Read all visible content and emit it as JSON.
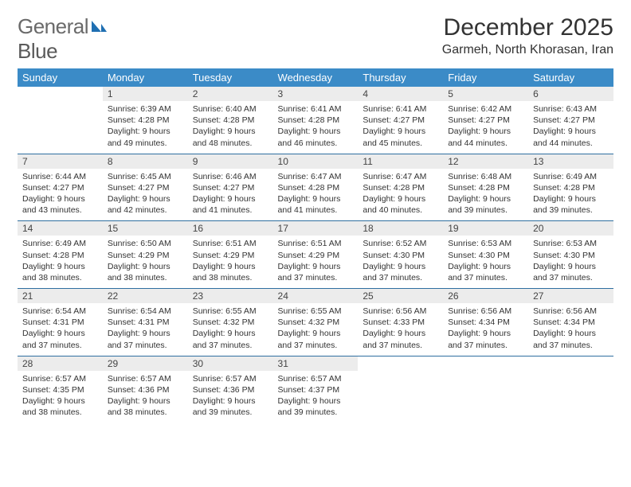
{
  "brand": {
    "word1": "General",
    "word2": "Blue"
  },
  "title": "December 2025",
  "location": "Garmeh, North Khorasan, Iran",
  "colors": {
    "header_bg": "#3b8bc7",
    "header_text": "#ffffff",
    "daynum_bg": "#ececec",
    "rule": "#2f6fa0",
    "text": "#333333",
    "brand_gray": "#6a6a6a",
    "brand_blue": "#1f6fb2"
  },
  "columns": [
    "Sunday",
    "Monday",
    "Tuesday",
    "Wednesday",
    "Thursday",
    "Friday",
    "Saturday"
  ],
  "weeks": [
    [
      null,
      {
        "n": "1",
        "sr": "6:39 AM",
        "ss": "4:28 PM",
        "dl": "9 hours and 49 minutes."
      },
      {
        "n": "2",
        "sr": "6:40 AM",
        "ss": "4:28 PM",
        "dl": "9 hours and 48 minutes."
      },
      {
        "n": "3",
        "sr": "6:41 AM",
        "ss": "4:28 PM",
        "dl": "9 hours and 46 minutes."
      },
      {
        "n": "4",
        "sr": "6:41 AM",
        "ss": "4:27 PM",
        "dl": "9 hours and 45 minutes."
      },
      {
        "n": "5",
        "sr": "6:42 AM",
        "ss": "4:27 PM",
        "dl": "9 hours and 44 minutes."
      },
      {
        "n": "6",
        "sr": "6:43 AM",
        "ss": "4:27 PM",
        "dl": "9 hours and 44 minutes."
      }
    ],
    [
      {
        "n": "7",
        "sr": "6:44 AM",
        "ss": "4:27 PM",
        "dl": "9 hours and 43 minutes."
      },
      {
        "n": "8",
        "sr": "6:45 AM",
        "ss": "4:27 PM",
        "dl": "9 hours and 42 minutes."
      },
      {
        "n": "9",
        "sr": "6:46 AM",
        "ss": "4:27 PM",
        "dl": "9 hours and 41 minutes."
      },
      {
        "n": "10",
        "sr": "6:47 AM",
        "ss": "4:28 PM",
        "dl": "9 hours and 41 minutes."
      },
      {
        "n": "11",
        "sr": "6:47 AM",
        "ss": "4:28 PM",
        "dl": "9 hours and 40 minutes."
      },
      {
        "n": "12",
        "sr": "6:48 AM",
        "ss": "4:28 PM",
        "dl": "9 hours and 39 minutes."
      },
      {
        "n": "13",
        "sr": "6:49 AM",
        "ss": "4:28 PM",
        "dl": "9 hours and 39 minutes."
      }
    ],
    [
      {
        "n": "14",
        "sr": "6:49 AM",
        "ss": "4:28 PM",
        "dl": "9 hours and 38 minutes."
      },
      {
        "n": "15",
        "sr": "6:50 AM",
        "ss": "4:29 PM",
        "dl": "9 hours and 38 minutes."
      },
      {
        "n": "16",
        "sr": "6:51 AM",
        "ss": "4:29 PM",
        "dl": "9 hours and 38 minutes."
      },
      {
        "n": "17",
        "sr": "6:51 AM",
        "ss": "4:29 PM",
        "dl": "9 hours and 37 minutes."
      },
      {
        "n": "18",
        "sr": "6:52 AM",
        "ss": "4:30 PM",
        "dl": "9 hours and 37 minutes."
      },
      {
        "n": "19",
        "sr": "6:53 AM",
        "ss": "4:30 PM",
        "dl": "9 hours and 37 minutes."
      },
      {
        "n": "20",
        "sr": "6:53 AM",
        "ss": "4:30 PM",
        "dl": "9 hours and 37 minutes."
      }
    ],
    [
      {
        "n": "21",
        "sr": "6:54 AM",
        "ss": "4:31 PM",
        "dl": "9 hours and 37 minutes."
      },
      {
        "n": "22",
        "sr": "6:54 AM",
        "ss": "4:31 PM",
        "dl": "9 hours and 37 minutes."
      },
      {
        "n": "23",
        "sr": "6:55 AM",
        "ss": "4:32 PM",
        "dl": "9 hours and 37 minutes."
      },
      {
        "n": "24",
        "sr": "6:55 AM",
        "ss": "4:32 PM",
        "dl": "9 hours and 37 minutes."
      },
      {
        "n": "25",
        "sr": "6:56 AM",
        "ss": "4:33 PM",
        "dl": "9 hours and 37 minutes."
      },
      {
        "n": "26",
        "sr": "6:56 AM",
        "ss": "4:34 PM",
        "dl": "9 hours and 37 minutes."
      },
      {
        "n": "27",
        "sr": "6:56 AM",
        "ss": "4:34 PM",
        "dl": "9 hours and 37 minutes."
      }
    ],
    [
      {
        "n": "28",
        "sr": "6:57 AM",
        "ss": "4:35 PM",
        "dl": "9 hours and 38 minutes."
      },
      {
        "n": "29",
        "sr": "6:57 AM",
        "ss": "4:36 PM",
        "dl": "9 hours and 38 minutes."
      },
      {
        "n": "30",
        "sr": "6:57 AM",
        "ss": "4:36 PM",
        "dl": "9 hours and 39 minutes."
      },
      {
        "n": "31",
        "sr": "6:57 AM",
        "ss": "4:37 PM",
        "dl": "9 hours and 39 minutes."
      },
      null,
      null,
      null
    ]
  ],
  "labels": {
    "sunrise": "Sunrise:",
    "sunset": "Sunset:",
    "daylight": "Daylight:"
  }
}
